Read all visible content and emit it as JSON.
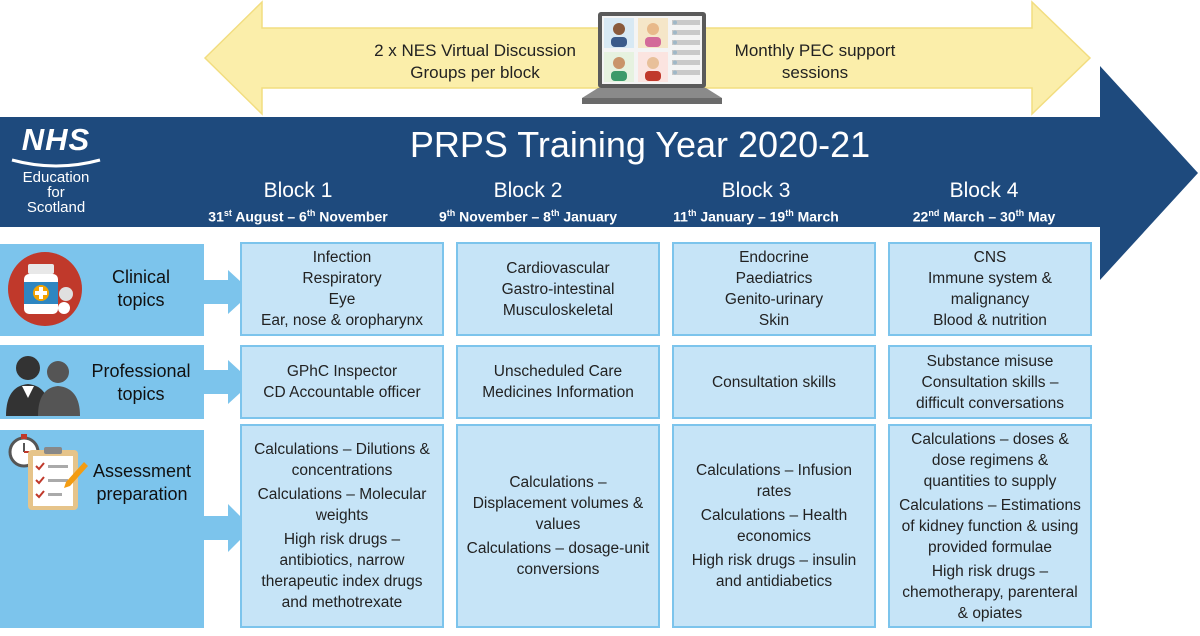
{
  "top_banner": {
    "left_text": [
      "2 x NES Virtual Discussion",
      "Groups per block"
    ],
    "right_text": [
      "Monthly PEC support",
      "sessions"
    ]
  },
  "logo": {
    "nhs": "NHS",
    "lines": [
      "Education",
      "for",
      "Scotland"
    ]
  },
  "title": "PRPS Training Year 2020-21",
  "blocks": [
    {
      "name": "Block 1",
      "start_day": "31",
      "start_sup": "st",
      "start_rest": " August – 6",
      "end_sup": "th",
      "end_rest": " November"
    },
    {
      "name": "Block 2",
      "start_day": "9",
      "start_sup": "th",
      "start_rest": " November – 8",
      "end_sup": "th",
      "end_rest": " January"
    },
    {
      "name": "Block 3",
      "start_day": "11",
      "start_sup": "th",
      "start_rest": " January – 19",
      "end_sup": "th",
      "end_rest": " March"
    },
    {
      "name": "Block 4",
      "start_day": "22",
      "start_sup": "nd",
      "start_rest": " March – 30",
      "end_sup": "th",
      "end_rest": " May"
    }
  ],
  "rows": [
    {
      "label": [
        "Clinical",
        "topics"
      ],
      "cells": [
        [
          "Infection",
          "Respiratory",
          "Eye",
          "Ear, nose & oropharynx"
        ],
        [
          "Cardiovascular",
          "Gastro-intestinal",
          "Musculoskeletal"
        ],
        [
          "Endocrine",
          "Paediatrics",
          "Genito-urinary",
          "Skin"
        ],
        [
          "CNS",
          "Immune system &",
          "malignancy",
          "Blood & nutrition"
        ]
      ]
    },
    {
      "label": [
        "Professional",
        "topics"
      ],
      "cells": [
        [
          "GPhC Inspector",
          "CD Accountable officer"
        ],
        [
          "Unscheduled Care",
          "Medicines Information"
        ],
        [
          "Consultation skills"
        ],
        [
          "Substance misuse",
          "Consultation skills –",
          "difficult conversations"
        ]
      ]
    },
    {
      "label": [
        "Assessment",
        "preparation"
      ],
      "cells": [
        [
          "Calculations – Dilutions &",
          "concentrations",
          "Calculations – Molecular",
          "weights",
          "High risk drugs –",
          "antibiotics, narrow",
          "therapeutic index drugs",
          "and methotrexate"
        ],
        [
          "Calculations –",
          "Displacement volumes &",
          "values",
          "Calculations – dosage-unit",
          "conversions"
        ],
        [
          "Calculations – Infusion",
          "rates",
          "Calculations – Health",
          "economics",
          "High risk drugs – insulin",
          "and antidiabetics"
        ],
        [
          "Calculations – doses &",
          "dose regimens &",
          "quantities to supply",
          "Calculations – Estimations",
          "of kidney function & using",
          "provided formulae",
          "High risk drugs –",
          "chemotherapy, parenteral",
          "& opiates"
        ]
      ]
    }
  ],
  "colors": {
    "dark_blue": "#1e4a7d",
    "light_blue": "#7cc4ec",
    "cell_fill": "#c6e4f7",
    "yellow": "#fbeeaa"
  }
}
